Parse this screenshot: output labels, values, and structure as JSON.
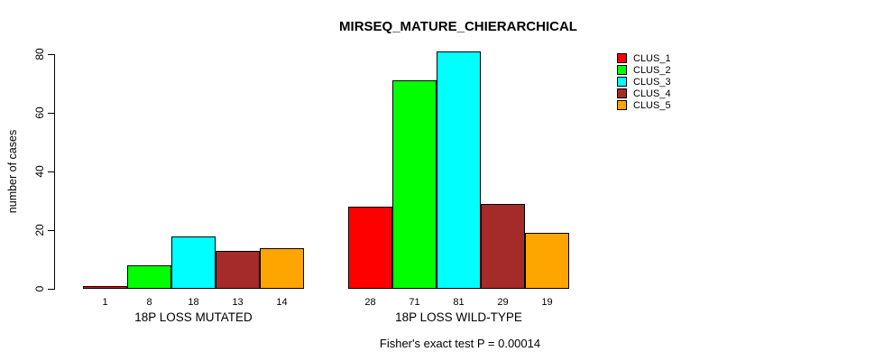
{
  "chart_data": {
    "type": "bar",
    "title": "MIRSEQ_MATURE_CHIERARCHICAL",
    "ylabel": "number of cases",
    "xlabel": "",
    "ylim": [
      0,
      80
    ],
    "yticks": [
      0,
      20,
      40,
      60,
      80
    ],
    "categories": [
      "18P LOSS MUTATED",
      "18P LOSS WILD-TYPE"
    ],
    "series": [
      {
        "name": "CLUS_1",
        "color": "#FF0000",
        "values": [
          1,
          28
        ]
      },
      {
        "name": "CLUS_2",
        "color": "#00FF00",
        "values": [
          8,
          71
        ]
      },
      {
        "name": "CLUS_3",
        "color": "#00FFFF",
        "values": [
          18,
          81
        ]
      },
      {
        "name": "CLUS_4",
        "color": "#A52A2A",
        "values": [
          13,
          29
        ]
      },
      {
        "name": "CLUS_5",
        "color": "#FFA500",
        "values": [
          14,
          19
        ]
      }
    ],
    "bar_value_labels_shown": true,
    "legend_position": "right",
    "grid": false,
    "footnote": "Fisher's exact test P = 0.00014"
  }
}
